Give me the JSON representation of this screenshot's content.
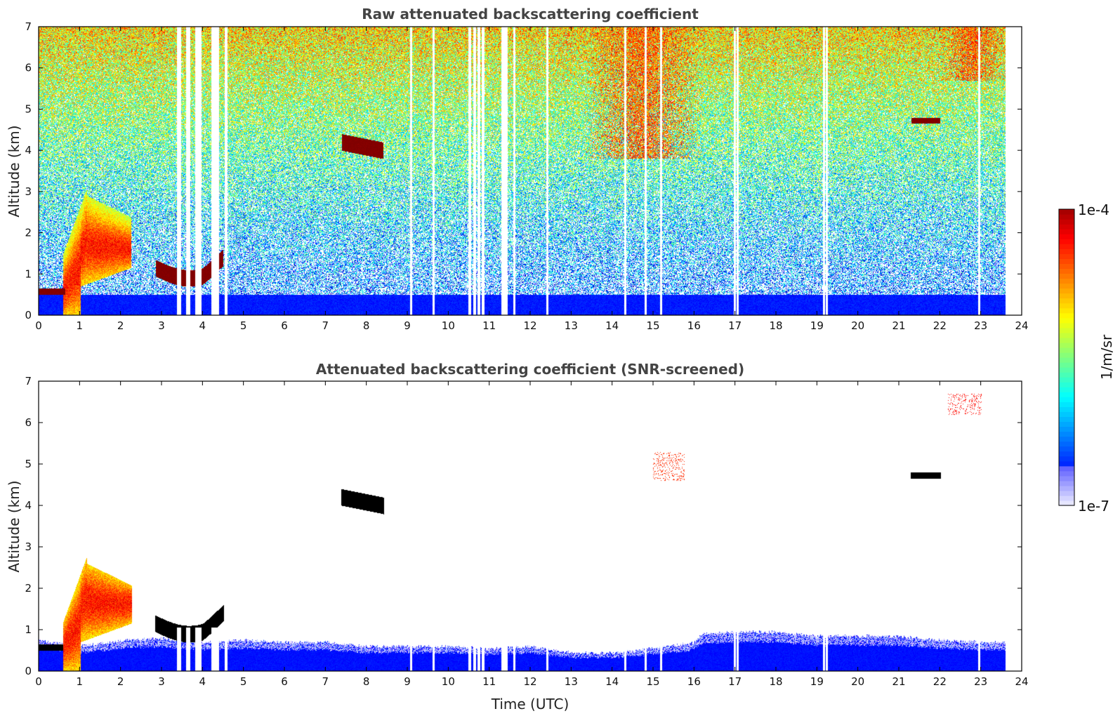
{
  "colors": {
    "background": "#ffffff",
    "axis": "#000000",
    "title_text": "#444444",
    "blue_near_surface": "#0000ee",
    "cloud_dark_red": "#8b0000",
    "screened_cloud": "#000000"
  },
  "colorbar": {
    "colormap": "jet",
    "max_label": "1e-4",
    "min_label": "1e-7",
    "unit_label": "1/m/sr",
    "log_min": -7,
    "log_max": -4
  },
  "chart_data": [
    {
      "type": "heatmap",
      "title": "Raw attenuated backscattering coefficient",
      "xlabel": "",
      "ylabel": "Altitude (km)",
      "xlim": [
        0,
        24
      ],
      "ylim": [
        0,
        7
      ],
      "xticks": [
        "0",
        "1",
        "2",
        "3",
        "4",
        "5",
        "6",
        "7",
        "8",
        "9",
        "10",
        "11",
        "12",
        "13",
        "14",
        "15",
        "16",
        "17",
        "18",
        "19",
        "20",
        "21",
        "22",
        "23",
        "24"
      ],
      "yticks": [
        "0",
        "1",
        "2",
        "3",
        "4",
        "5",
        "6",
        "7"
      ],
      "data_end_time": 23.6,
      "missing_time_gaps": [
        [
          3.38,
          3.46
        ],
        [
          3.6,
          3.67
        ],
        [
          3.83,
          3.95
        ],
        [
          4.22,
          4.38
        ],
        [
          4.55,
          4.58
        ],
        [
          9.08,
          9.1
        ],
        [
          9.63,
          9.65
        ],
        [
          10.5,
          10.53
        ],
        [
          10.62,
          10.65
        ],
        [
          10.72,
          10.76
        ],
        [
          10.83,
          10.86
        ],
        [
          11.3,
          11.42
        ],
        [
          11.6,
          11.62
        ],
        [
          12.4,
          12.42
        ],
        [
          14.3,
          14.32
        ],
        [
          14.8,
          14.82
        ],
        [
          15.18,
          15.2
        ],
        [
          16.98,
          17.0
        ],
        [
          17.05,
          17.07
        ],
        [
          19.15,
          19.17
        ],
        [
          19.22,
          19.24
        ],
        [
          22.95,
          22.97
        ]
      ],
      "features": [
        {
          "name": "boundary-layer",
          "t0": 0.0,
          "t1": 23.6,
          "z_top_km": 0.5,
          "log_value": -6.3
        },
        {
          "name": "low-cloud-early",
          "t0": 0.0,
          "t1": 0.65,
          "z_min_km": 0.5,
          "z_max_km": 0.65,
          "log_value": -4.05
        },
        {
          "name": "convective-plume",
          "t0": 0.6,
          "t1": 2.25,
          "z_min_km": 0.0,
          "z_max_km": 3.1,
          "log_value": -4.7
        },
        {
          "name": "cloud-1km",
          "t0": 2.85,
          "t1": 4.5,
          "z_min_km": 0.95,
          "z_max_km": 1.35,
          "log_value": -4.05
        },
        {
          "name": "cloud-4km",
          "t0": 7.4,
          "t1": 8.4,
          "z_min_km": 4.0,
          "z_max_km": 4.4,
          "log_value": -4.05
        },
        {
          "name": "cloud-4.7km",
          "t0": 21.3,
          "t1": 22.0,
          "z_min_km": 4.65,
          "z_max_km": 4.8,
          "log_value": -4.05
        },
        {
          "name": "elevated-aerosol-14utc",
          "t0": 13.3,
          "t1": 16.2,
          "z_min_km": 3.8,
          "z_max_km": 7.0,
          "log_value": -4.6
        },
        {
          "name": "elevated-aerosol-22utc",
          "t0": 22.0,
          "t1": 23.6,
          "z_min_km": 5.7,
          "z_max_km": 7.0,
          "log_value": -4.6
        }
      ]
    },
    {
      "type": "heatmap",
      "title": "Attenuated backscattering coefficient (SNR-screened)",
      "xlabel": "Time (UTC)",
      "ylabel": "Altitude (km)",
      "xlim": [
        0,
        24
      ],
      "ylim": [
        0,
        7
      ],
      "xticks": [
        "0",
        "1",
        "2",
        "3",
        "4",
        "5",
        "6",
        "7",
        "8",
        "9",
        "10",
        "11",
        "12",
        "13",
        "14",
        "15",
        "16",
        "17",
        "18",
        "19",
        "20",
        "21",
        "22",
        "23",
        "24"
      ],
      "yticks": [
        "0",
        "1",
        "2",
        "3",
        "4",
        "5",
        "6",
        "7"
      ],
      "data_end_time": 23.6,
      "boundary_layer_top_km": [
        [
          0,
          0.75
        ],
        [
          1,
          0.6
        ],
        [
          2,
          0.75
        ],
        [
          3,
          0.8
        ],
        [
          4,
          0.7
        ],
        [
          5,
          0.75
        ],
        [
          6,
          0.7
        ],
        [
          7,
          0.7
        ],
        [
          8,
          0.6
        ],
        [
          9,
          0.6
        ],
        [
          10,
          0.6
        ],
        [
          11,
          0.55
        ],
        [
          12,
          0.6
        ],
        [
          13,
          0.45
        ],
        [
          14,
          0.45
        ],
        [
          15,
          0.55
        ],
        [
          16,
          0.7
        ],
        [
          16.2,
          0.9
        ],
        [
          17,
          0.95
        ],
        [
          18,
          0.95
        ],
        [
          19,
          0.85
        ],
        [
          20,
          0.85
        ],
        [
          21,
          0.85
        ],
        [
          22,
          0.75
        ],
        [
          23,
          0.7
        ],
        [
          23.6,
          0.7
        ]
      ],
      "features": [
        {
          "name": "low-cloud-early",
          "t0": 0.0,
          "t1": 0.65,
          "z_min_km": 0.5,
          "z_max_km": 0.65,
          "screened": true
        },
        {
          "name": "convective-plume",
          "t0": 0.6,
          "t1": 2.25,
          "z_min_km": 0.0,
          "z_max_km": 3.1,
          "log_value": -4.7
        },
        {
          "name": "cloud-1km",
          "t0": 2.85,
          "t1": 4.5,
          "z_min_km": 0.95,
          "z_max_km": 1.35,
          "screened": true
        },
        {
          "name": "cloud-4km",
          "t0": 7.4,
          "t1": 8.4,
          "z_min_km": 4.0,
          "z_max_km": 4.4,
          "screened": true
        },
        {
          "name": "cloud-4.7km",
          "t0": 21.3,
          "t1": 22.0,
          "z_min_km": 4.65,
          "z_max_km": 4.8,
          "screened": true
        },
        {
          "name": "aerosol-fragment-15utc",
          "t0": 15.0,
          "t1": 15.75,
          "z_min_km": 4.6,
          "z_max_km": 5.3,
          "log_value": -4.5
        },
        {
          "name": "aerosol-fragment-22utc",
          "t0": 22.2,
          "t1": 23.0,
          "z_min_km": 6.2,
          "z_max_km": 6.7,
          "log_value": -4.4
        }
      ]
    }
  ]
}
